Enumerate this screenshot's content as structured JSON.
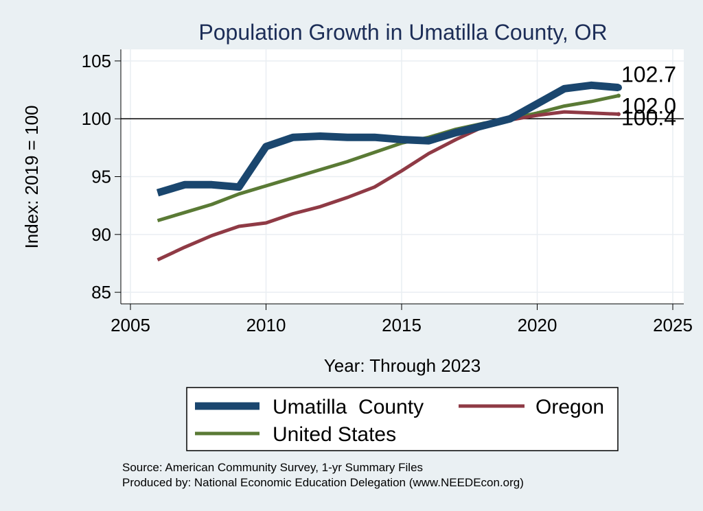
{
  "chart_data": {
    "type": "line",
    "title": "Population Growth in Umatilla County, OR",
    "xlabel": "Year: Through 2023",
    "ylabel": "Index: 2019 = 100",
    "xlim": [
      2005,
      2025
    ],
    "ylim": [
      84,
      106
    ],
    "x_ticks": [
      2005,
      2010,
      2015,
      2020,
      2025
    ],
    "y_ticks": [
      85,
      90,
      95,
      100,
      105
    ],
    "grid": true,
    "reference_line": 100,
    "legend_position": "bottom",
    "series": [
      {
        "name": "Umatilla  County",
        "color": "#1a466e",
        "x": [
          2006,
          2007,
          2008,
          2009,
          2010,
          2011,
          2012,
          2013,
          2014,
          2015,
          2016,
          2017,
          2018,
          2019,
          2020,
          2021,
          2022,
          2023
        ],
        "values": [
          93.6,
          94.3,
          94.3,
          94.1,
          97.6,
          98.4,
          98.5,
          98.4,
          98.4,
          98.2,
          98.1,
          98.8,
          99.4,
          100.0,
          101.3,
          102.6,
          102.9,
          102.7
        ],
        "end_label": "102.7"
      },
      {
        "name": "Oregon",
        "color": "#8f3a45",
        "x": [
          2006,
          2007,
          2008,
          2009,
          2010,
          2011,
          2012,
          2013,
          2014,
          2015,
          2016,
          2017,
          2018,
          2019,
          2020,
          2021,
          2022,
          2023
        ],
        "values": [
          87.8,
          88.9,
          89.9,
          90.7,
          91.0,
          91.8,
          92.4,
          93.2,
          94.1,
          95.5,
          97.0,
          98.2,
          99.3,
          99.9,
          100.3,
          100.6,
          100.5,
          100.4
        ],
        "end_label": "100.4"
      },
      {
        "name": "United States",
        "color": "#5a7a35",
        "x": [
          2006,
          2007,
          2008,
          2009,
          2010,
          2011,
          2012,
          2013,
          2014,
          2015,
          2016,
          2017,
          2018,
          2019,
          2020,
          2021,
          2022,
          2023
        ],
        "values": [
          91.2,
          91.9,
          92.6,
          93.5,
          94.2,
          94.9,
          95.6,
          96.3,
          97.1,
          97.9,
          98.4,
          99.1,
          99.6,
          100.0,
          100.5,
          101.1,
          101.5,
          102.0
        ],
        "end_label": "102.0"
      }
    ],
    "source_lines": [
      "Source: American Community Survey, 1-yr Summary Files",
      "Produced by: National Economic Education Delegation (www.NEEDEcon.org)"
    ]
  },
  "colors": {
    "background": "#eaf0f3",
    "plot_background": "#ffffff",
    "grid": "#e9eef2",
    "title": "#1c2d57"
  }
}
